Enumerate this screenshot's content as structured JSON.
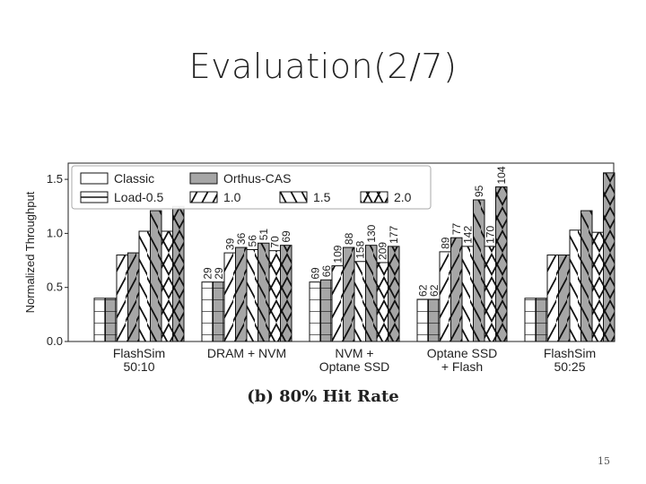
{
  "slide": {
    "title": "Evaluation(2/7)",
    "page_number": "15"
  },
  "chart_data": {
    "type": "bar",
    "caption": "(b) 80% Hit Rate",
    "ylabel": "Normalized Throughput",
    "xlabel": "",
    "ylim": [
      0,
      1.65
    ],
    "yticks": [
      "0.0",
      "0.5",
      "1.0",
      "1.5"
    ],
    "categories": [
      [
        "FlashSim",
        "50:10"
      ],
      [
        "DRAM + NVM"
      ],
      [
        "NVM +",
        "Optane SSD"
      ],
      [
        "Optane SSD",
        "+ Flash"
      ],
      [
        "FlashSim",
        "50:25"
      ]
    ],
    "series": [
      {
        "name": "Classic",
        "group": "Load-0.5",
        "values": [
          0.4,
          0.55,
          0.55,
          0.39,
          0.4
        ]
      },
      {
        "name": "Orthus-CAS",
        "group": "Load-0.5",
        "values": [
          0.4,
          0.55,
          0.57,
          0.39,
          0.4
        ]
      },
      {
        "name": "Classic",
        "group": "1.0",
        "values": [
          0.8,
          0.82,
          0.7,
          0.83,
          0.8
        ]
      },
      {
        "name": "Orthus-CAS",
        "group": "1.0",
        "values": [
          0.82,
          0.87,
          0.87,
          0.96,
          0.8
        ]
      },
      {
        "name": "Classic",
        "group": "1.5",
        "values": [
          1.02,
          0.85,
          0.74,
          0.88,
          1.03
        ]
      },
      {
        "name": "Orthus-CAS",
        "group": "1.5",
        "values": [
          1.21,
          0.91,
          0.89,
          1.31,
          1.21
        ]
      },
      {
        "name": "Classic",
        "group": "2.0",
        "values": [
          1.02,
          0.84,
          0.73,
          0.88,
          1.01
        ]
      },
      {
        "name": "Orthus-CAS",
        "group": "2.0",
        "values": [
          1.25,
          0.89,
          0.88,
          1.43,
          1.56
        ]
      }
    ],
    "bar_labels": [
      [],
      [
        "29",
        "29",
        "39",
        "36",
        "56",
        "51",
        "70",
        "69"
      ],
      [
        "69",
        "66",
        "109",
        "88",
        "158",
        "130",
        "209",
        "177"
      ],
      [
        "62",
        "62",
        "89",
        "77",
        "142",
        "95",
        "170",
        "104"
      ],
      []
    ],
    "legend": {
      "placement": "top-left",
      "systems": [
        "Classic",
        "Orthus-CAS"
      ],
      "loads": [
        "Load-0.5",
        "1.0",
        "1.5",
        "2.0"
      ]
    },
    "colors": {
      "classic": "#ffffff",
      "orthus": "#a6a6a6",
      "stroke": "#111111"
    }
  }
}
